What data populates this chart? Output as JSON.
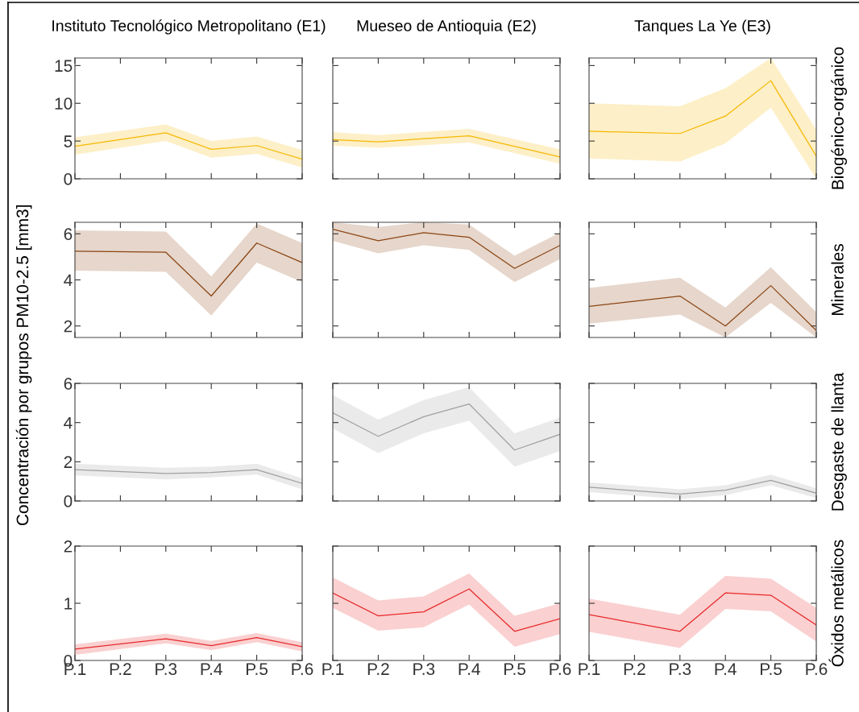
{
  "chart_data": [
    {
      "type": "line",
      "title": "Instituto Tecnológico Metropolitano (E1)",
      "categories": [
        "P.1",
        "P.2",
        "P.3",
        "P.4",
        "P.5",
        "P.6"
      ],
      "ylim": [
        0,
        16
      ],
      "yticks": [
        0,
        5,
        10,
        15
      ],
      "tick_labels": "y",
      "grid": false,
      "series": [
        {
          "color": "#f5b800",
          "values": [
            4.3,
            null,
            6.1,
            3.9,
            4.4,
            2.6
          ],
          "lower": [
            3.2,
            null,
            5.0,
            2.8,
            3.3,
            1.5
          ],
          "upper": [
            5.5,
            null,
            7.2,
            5.0,
            5.6,
            3.8
          ]
        }
      ]
    },
    {
      "type": "line",
      "title": "Mueseo de Antioquia (E2)",
      "categories": [
        "P.1",
        "P.2",
        "P.3",
        "P.4",
        "P.5",
        "P.6"
      ],
      "ylim": [
        0,
        16
      ],
      "yticks": [
        0,
        5,
        10,
        15
      ],
      "tick_labels": false,
      "grid": false,
      "series": [
        {
          "color": "#f5b800",
          "values": [
            5.2,
            4.9,
            null,
            5.7,
            null,
            2.9
          ],
          "lower": [
            4.4,
            4.1,
            null,
            4.8,
            null,
            2.0
          ],
          "upper": [
            6.2,
            5.8,
            null,
            6.6,
            null,
            3.9
          ]
        }
      ]
    },
    {
      "type": "line",
      "title": "Tanques La Ye (E3)",
      "y2label": "Biogénico-orgánico",
      "categories": [
        "P.1",
        "P.2",
        "P.3",
        "P.4",
        "P.5",
        "P.6"
      ],
      "ylim": [
        0,
        16
      ],
      "yticks": [
        0,
        5,
        10,
        15
      ],
      "tick_labels": false,
      "grid": false,
      "series": [
        {
          "color": "#f5b800",
          "values": [
            6.3,
            null,
            6.0,
            8.3,
            13.0,
            3.0
          ],
          "lower": [
            2.7,
            null,
            2.3,
            4.7,
            9.4,
            0
          ],
          "upper": [
            10.0,
            null,
            9.6,
            12.0,
            16,
            6.5
          ]
        }
      ]
    },
    {
      "type": "line",
      "ylabel": "Concentración por grupos PM10-2.5 [mm3]",
      "categories": [
        "P.1",
        "P.2",
        "P.3",
        "P.4",
        "P.5",
        "P.6"
      ],
      "ylim": [
        1.5,
        6.5
      ],
      "yticks": [
        2,
        4,
        6
      ],
      "tick_labels": "y",
      "grid": false,
      "series": [
        {
          "color": "#8b4513",
          "values": [
            5.25,
            null,
            5.2,
            3.3,
            5.6,
            4.75
          ],
          "lower": [
            4.4,
            null,
            4.35,
            2.45,
            4.75,
            3.9
          ],
          "upper": [
            6.15,
            null,
            6.1,
            4.15,
            6.45,
            5.6
          ]
        }
      ]
    },
    {
      "type": "line",
      "categories": [
        "P.1",
        "P.2",
        "P.3",
        "P.4",
        "P.5",
        "P.6"
      ],
      "ylim": [
        1.5,
        6.5
      ],
      "yticks": [
        2,
        4,
        6
      ],
      "tick_labels": false,
      "grid": false,
      "series": [
        {
          "color": "#8b4513",
          "values": [
            6.2,
            5.7,
            6.05,
            5.85,
            4.5,
            5.5
          ],
          "lower": [
            5.7,
            5.15,
            5.5,
            5.3,
            3.9,
            4.9
          ],
          "upper": [
            6.5,
            6.3,
            6.5,
            6.4,
            5.05,
            6.05
          ]
        }
      ]
    },
    {
      "type": "line",
      "y2label": "Minerales",
      "categories": [
        "P.1",
        "P.2",
        "P.3",
        "P.4",
        "P.5",
        "P.6"
      ],
      "ylim": [
        1.5,
        6.5
      ],
      "yticks": [
        2,
        4,
        6
      ],
      "tick_labels": false,
      "grid": false,
      "series": [
        {
          "color": "#8b4513",
          "values": [
            2.85,
            null,
            3.3,
            2.0,
            3.75,
            1.8
          ],
          "lower": [
            2.1,
            null,
            2.5,
            1.5,
            3.0,
            1.5
          ],
          "upper": [
            3.65,
            null,
            4.1,
            2.8,
            4.55,
            2.6
          ]
        }
      ]
    },
    {
      "type": "line",
      "categories": [
        "P.1",
        "P.2",
        "P.3",
        "P.4",
        "P.5",
        "P.6"
      ],
      "ylim": [
        0,
        6
      ],
      "yticks": [
        0,
        2,
        4,
        6
      ],
      "tick_labels": "y",
      "grid": false,
      "series": [
        {
          "color": "#a0a0a0",
          "values": [
            1.6,
            null,
            1.4,
            1.45,
            1.6,
            0.9
          ],
          "lower": [
            1.3,
            null,
            1.1,
            1.2,
            1.35,
            0.6
          ],
          "upper": [
            1.9,
            null,
            1.7,
            1.75,
            1.9,
            1.15
          ]
        }
      ]
    },
    {
      "type": "line",
      "categories": [
        "P.1",
        "P.2",
        "P.3",
        "P.4",
        "P.5",
        "P.6"
      ],
      "ylim": [
        0,
        6
      ],
      "yticks": [
        0,
        2,
        4,
        6
      ],
      "tick_labels": false,
      "grid": false,
      "series": [
        {
          "color": "#a0a0a0",
          "values": [
            4.5,
            3.3,
            4.3,
            4.95,
            2.6,
            3.4
          ],
          "lower": [
            3.7,
            2.45,
            3.45,
            4.1,
            1.75,
            2.55
          ],
          "upper": [
            5.4,
            4.15,
            5.15,
            5.8,
            3.45,
            4.25
          ]
        }
      ]
    },
    {
      "type": "line",
      "y2label": "Desgaste de llanta",
      "categories": [
        "P.1",
        "P.2",
        "P.3",
        "P.4",
        "P.5",
        "P.6"
      ],
      "ylim": [
        0,
        6
      ],
      "yticks": [
        0,
        2,
        4,
        6
      ],
      "tick_labels": false,
      "grid": false,
      "series": [
        {
          "color": "#a0a0a0",
          "values": [
            0.7,
            null,
            0.35,
            0.55,
            1.05,
            0.4
          ],
          "lower": [
            0.45,
            null,
            0.1,
            0.3,
            0.8,
            0.15
          ],
          "upper": [
            0.95,
            null,
            0.6,
            0.8,
            1.35,
            0.65
          ]
        }
      ]
    },
    {
      "type": "line",
      "categories": [
        "P.1",
        "P.2",
        "P.3",
        "P.4",
        "P.5",
        "P.6"
      ],
      "ylim": [
        0,
        2
      ],
      "yticks": [
        0,
        1,
        2
      ],
      "grid": false,
      "series": [
        {
          "color": "#e8282a",
          "values": [
            0.2,
            null,
            0.38,
            0.26,
            0.4,
            0.24
          ],
          "lower": [
            0.1,
            null,
            0.3,
            0.18,
            0.32,
            0.16
          ],
          "upper": [
            0.28,
            null,
            0.47,
            0.34,
            0.48,
            0.32
          ]
        }
      ]
    },
    {
      "type": "line",
      "categories": [
        "P.1",
        "P.2",
        "P.3",
        "P.4",
        "P.5",
        "P.6"
      ],
      "ylim": [
        0,
        2
      ],
      "yticks": [
        0,
        1,
        2
      ],
      "tick_labels": "x",
      "grid": false,
      "series": [
        {
          "color": "#e8282a",
          "values": [
            1.18,
            0.78,
            0.85,
            1.25,
            0.51,
            0.73
          ],
          "lower": [
            0.92,
            0.52,
            0.58,
            0.98,
            0.24,
            0.46
          ],
          "upper": [
            1.45,
            1.05,
            1.12,
            1.52,
            0.78,
            1.0
          ]
        }
      ]
    },
    {
      "type": "line",
      "y2label": "Óxidos metálicos",
      "categories": [
        "P.1",
        "P.2",
        "P.3",
        "P.4",
        "P.5",
        "P.6"
      ],
      "ylim": [
        0,
        2
      ],
      "yticks": [
        0,
        1,
        2
      ],
      "tick_labels": "x",
      "grid": false,
      "series": [
        {
          "color": "#e8282a",
          "values": [
            0.8,
            null,
            0.51,
            1.18,
            1.14,
            0.62
          ],
          "lower": [
            0.5,
            null,
            0.22,
            0.9,
            0.86,
            0.33
          ],
          "upper": [
            1.08,
            null,
            0.8,
            1.48,
            1.43,
            0.92
          ]
        }
      ]
    }
  ]
}
